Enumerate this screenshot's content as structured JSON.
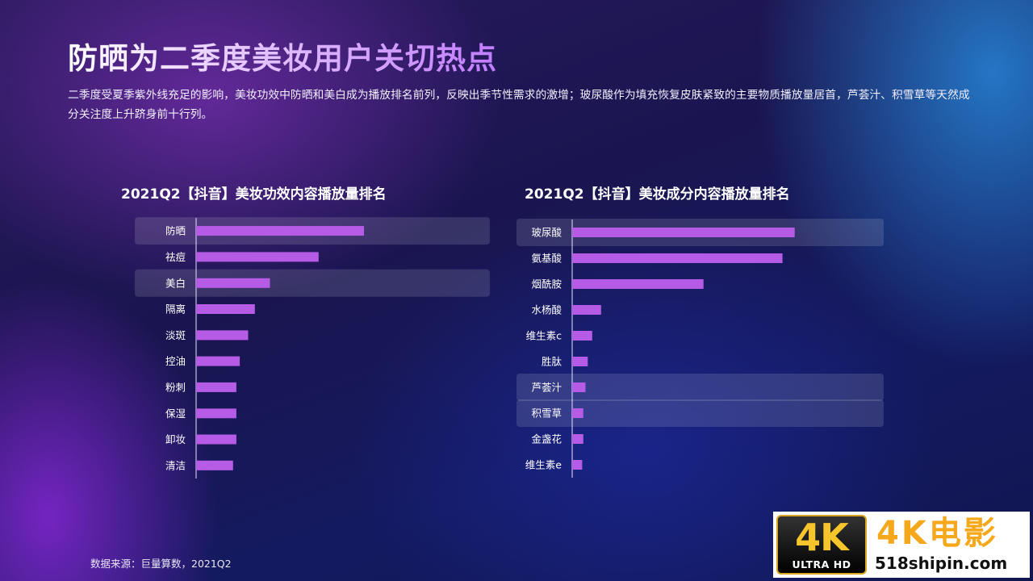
{
  "page": {
    "title": "防晒为二季度美妆用户关切热点",
    "subtitle": "二季度受夏季紫外线充足的影响，美妆功效中防晒和美白成为播放排名前列，反映出季节性需求的激增；玻尿酸作为填充恢复皮肤紧致的主要物质播放量居首，芦荟汁、积雪草等天然成分关注度上升跻身前十行列。",
    "source": "数据来源：巨量算数，2021Q2"
  },
  "watermark": {
    "badge_main": "4K",
    "badge_sub": "ULTRA HD",
    "brand": "4K电影",
    "site": "518shipin.com"
  },
  "colors": {
    "bar": "#b65be6",
    "highlight_row": "rgba(255,255,255,0.13)",
    "axis": "#e6e2ff",
    "label": "#ffffff"
  },
  "chart_data": [
    {
      "type": "bar",
      "orientation": "horizontal",
      "title": "2021Q2【抖音】美妆功效内容播放量排名",
      "categories": [
        "防晒",
        "祛痘",
        "美白",
        "隔离",
        "淡斑",
        "控油",
        "粉刺",
        "保湿",
        "卸妆",
        "清洁"
      ],
      "values": [
        100,
        73,
        44,
        35,
        31,
        26,
        24,
        24,
        24,
        22
      ],
      "highlighted": [
        "防晒",
        "美白"
      ],
      "xlim": [
        0,
        175
      ]
    },
    {
      "type": "bar",
      "orientation": "horizontal",
      "title": "2021Q2【抖音】美妆成分内容播放量排名",
      "categories": [
        "玻尿酸",
        "氨基酸",
        "烟酰胺",
        "水杨酸",
        "维生素c",
        "胜肽",
        "芦荟汁",
        "积雪草",
        "金盏花",
        "维生素e"
      ],
      "values": [
        100,
        94.5,
        59,
        13,
        9,
        7,
        6,
        5,
        5,
        4.5
      ],
      "highlighted": [
        "玻尿酸",
        "芦荟汁",
        "积雪草"
      ],
      "xlim": [
        0,
        140
      ]
    }
  ]
}
